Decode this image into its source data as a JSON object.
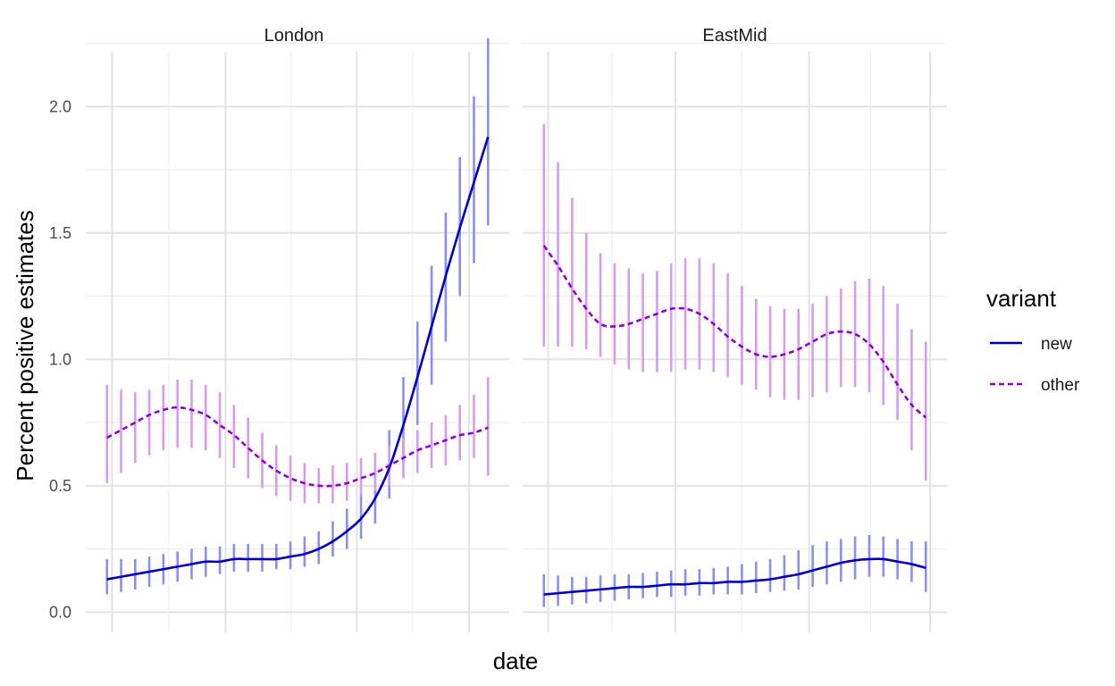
{
  "chart_data": {
    "type": "line",
    "xlabel": "date",
    "ylabel": "Percent positive estimates",
    "ylim": [
      -0.08,
      2.28
    ],
    "yticks": [
      0.0,
      0.5,
      1.0,
      1.5,
      2.0
    ],
    "ytick_labels": [
      "0.0",
      "0.5",
      "1.0",
      "1.5",
      "2.0"
    ],
    "x_tick_labels_shown": false,
    "x_index_range": [
      -1.5,
      28.5
    ],
    "grid": true,
    "legend": {
      "title": "variant",
      "placement": "right",
      "entries": [
        {
          "label": "new",
          "color": "#0000c0",
          "dash": "solid"
        },
        {
          "label": "other",
          "color": "#9400d3",
          "dash": "dashed"
        }
      ]
    },
    "error_bar_colors": {
      "new": "#8a8ff0",
      "other": "#d79cee"
    },
    "panels": [
      {
        "name": "London",
        "x_index": [
          0,
          1,
          2,
          3,
          4,
          5,
          6,
          7,
          8,
          9,
          10,
          11,
          12,
          13,
          14,
          15,
          16,
          17,
          18,
          19,
          20,
          21,
          22,
          23,
          24,
          25,
          26,
          27
        ],
        "series": [
          {
            "name": "new",
            "values": [
              0.13,
              0.14,
              0.15,
              0.16,
              0.17,
              0.18,
              0.19,
              0.2,
              0.2,
              0.21,
              0.21,
              0.21,
              0.21,
              0.22,
              0.23,
              0.25,
              0.28,
              0.32,
              0.37,
              0.45,
              0.57,
              0.74,
              0.93,
              1.13,
              1.33,
              1.52,
              1.7,
              1.88
            ],
            "lower": [
              0.07,
              0.08,
              0.09,
              0.1,
              0.11,
              0.12,
              0.13,
              0.14,
              0.15,
              0.16,
              0.16,
              0.16,
              0.17,
              0.17,
              0.18,
              0.19,
              0.22,
              0.25,
              0.29,
              0.35,
              0.45,
              0.59,
              0.74,
              0.9,
              1.07,
              1.25,
              1.38,
              1.53
            ],
            "upper": [
              0.21,
              0.21,
              0.21,
              0.22,
              0.23,
              0.24,
              0.25,
              0.26,
              0.26,
              0.27,
              0.27,
              0.27,
              0.27,
              0.28,
              0.3,
              0.32,
              0.36,
              0.41,
              0.47,
              0.57,
              0.72,
              0.93,
              1.15,
              1.37,
              1.58,
              1.8,
              2.04,
              2.27
            ]
          },
          {
            "name": "other",
            "values": [
              0.69,
              0.72,
              0.75,
              0.78,
              0.8,
              0.81,
              0.8,
              0.78,
              0.74,
              0.7,
              0.65,
              0.6,
              0.56,
              0.53,
              0.51,
              0.5,
              0.5,
              0.51,
              0.53,
              0.55,
              0.58,
              0.61,
              0.64,
              0.66,
              0.68,
              0.7,
              0.71,
              0.73
            ],
            "lower": [
              0.51,
              0.55,
              0.59,
              0.62,
              0.64,
              0.65,
              0.65,
              0.64,
              0.61,
              0.57,
              0.53,
              0.49,
              0.46,
              0.44,
              0.43,
              0.43,
              0.43,
              0.44,
              0.46,
              0.48,
              0.5,
              0.53,
              0.55,
              0.57,
              0.58,
              0.6,
              0.61,
              0.54
            ],
            "upper": [
              0.9,
              0.88,
              0.87,
              0.88,
              0.9,
              0.92,
              0.92,
              0.9,
              0.87,
              0.82,
              0.77,
              0.71,
              0.66,
              0.62,
              0.59,
              0.57,
              0.58,
              0.59,
              0.61,
              0.63,
              0.66,
              0.69,
              0.72,
              0.75,
              0.78,
              0.82,
              0.86,
              0.93
            ]
          }
        ]
      },
      {
        "name": "EastMid",
        "x_index": [
          0,
          1,
          2,
          3,
          4,
          5,
          6,
          7,
          8,
          9,
          10,
          11,
          12,
          13,
          14,
          15,
          16,
          17,
          18,
          19,
          20,
          21,
          22,
          23,
          24,
          25,
          26,
          27
        ],
        "series": [
          {
            "name": "new",
            "values": [
              0.07,
              0.075,
              0.08,
              0.085,
              0.09,
              0.095,
              0.1,
              0.1,
              0.105,
              0.11,
              0.11,
              0.115,
              0.115,
              0.12,
              0.12,
              0.125,
              0.13,
              0.14,
              0.15,
              0.165,
              0.18,
              0.195,
              0.205,
              0.21,
              0.21,
              0.2,
              0.19,
              0.175
            ],
            "lower": [
              0.02,
              0.025,
              0.03,
              0.035,
              0.04,
              0.045,
              0.05,
              0.055,
              0.06,
              0.06,
              0.065,
              0.065,
              0.07,
              0.07,
              0.07,
              0.075,
              0.08,
              0.085,
              0.09,
              0.1,
              0.11,
              0.12,
              0.13,
              0.14,
              0.14,
              0.13,
              0.12,
              0.08
            ],
            "upper": [
              0.15,
              0.145,
              0.14,
              0.14,
              0.145,
              0.15,
              0.15,
              0.155,
              0.16,
              0.165,
              0.17,
              0.17,
              0.175,
              0.18,
              0.19,
              0.2,
              0.21,
              0.225,
              0.245,
              0.265,
              0.28,
              0.29,
              0.3,
              0.305,
              0.3,
              0.29,
              0.28,
              0.28
            ]
          },
          {
            "name": "other",
            "values": [
              1.45,
              1.37,
              1.28,
              1.2,
              1.14,
              1.13,
              1.14,
              1.16,
              1.18,
              1.2,
              1.2,
              1.18,
              1.14,
              1.09,
              1.05,
              1.02,
              1.01,
              1.02,
              1.04,
              1.07,
              1.1,
              1.11,
              1.1,
              1.06,
              0.99,
              0.9,
              0.82,
              0.77
            ],
            "lower": [
              1.05,
              1.05,
              1.05,
              1.04,
              1.01,
              0.98,
              0.96,
              0.95,
              0.95,
              0.95,
              0.96,
              0.96,
              0.95,
              0.93,
              0.9,
              0.88,
              0.85,
              0.84,
              0.84,
              0.85,
              0.87,
              0.89,
              0.89,
              0.87,
              0.82,
              0.76,
              0.64,
              0.52
            ],
            "upper": [
              1.93,
              1.78,
              1.64,
              1.5,
              1.42,
              1.38,
              1.36,
              1.34,
              1.35,
              1.38,
              1.4,
              1.4,
              1.38,
              1.34,
              1.29,
              1.24,
              1.21,
              1.2,
              1.2,
              1.22,
              1.25,
              1.28,
              1.31,
              1.32,
              1.29,
              1.22,
              1.12,
              1.07
            ]
          }
        ]
      }
    ]
  }
}
